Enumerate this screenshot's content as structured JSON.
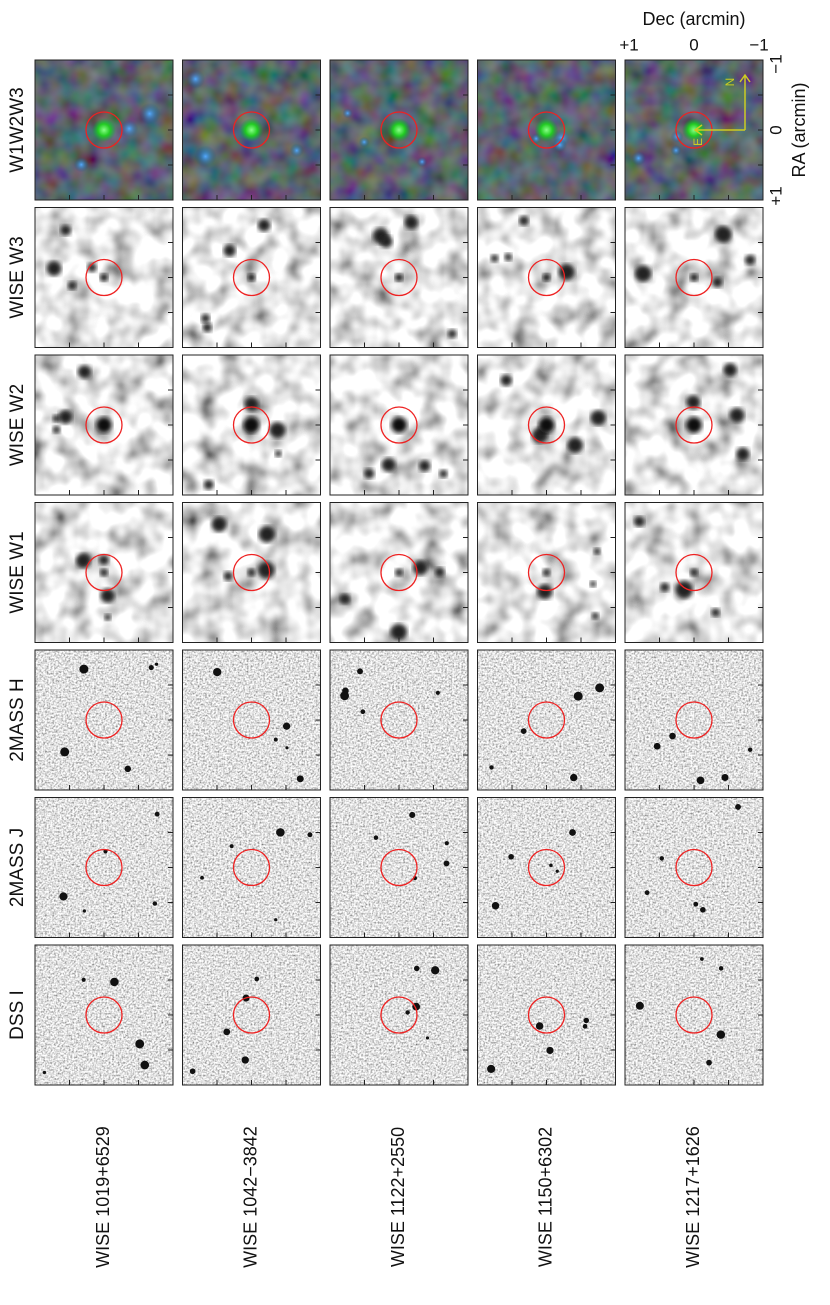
{
  "columns": [
    "DSS I",
    "2MASS J",
    "2MASS H",
    "WISE W1",
    "WISE W2",
    "WISE W3",
    "W1W2W3"
  ],
  "rows": [
    "WISE 1019+6529",
    "WISE 1042−3842",
    "WISE 1122+2550",
    "WISE 1150+6302",
    "WISE 1217+1626"
  ],
  "axes": {
    "ra_label": "RA (arcmin)",
    "ra_ticks": [
      "+1",
      "0",
      "−1"
    ],
    "dec_label": "Dec (arcmin)",
    "dec_ticks": [
      "+1",
      "0",
      "−1"
    ]
  },
  "compass": {
    "north": "N",
    "east": "E"
  }
}
